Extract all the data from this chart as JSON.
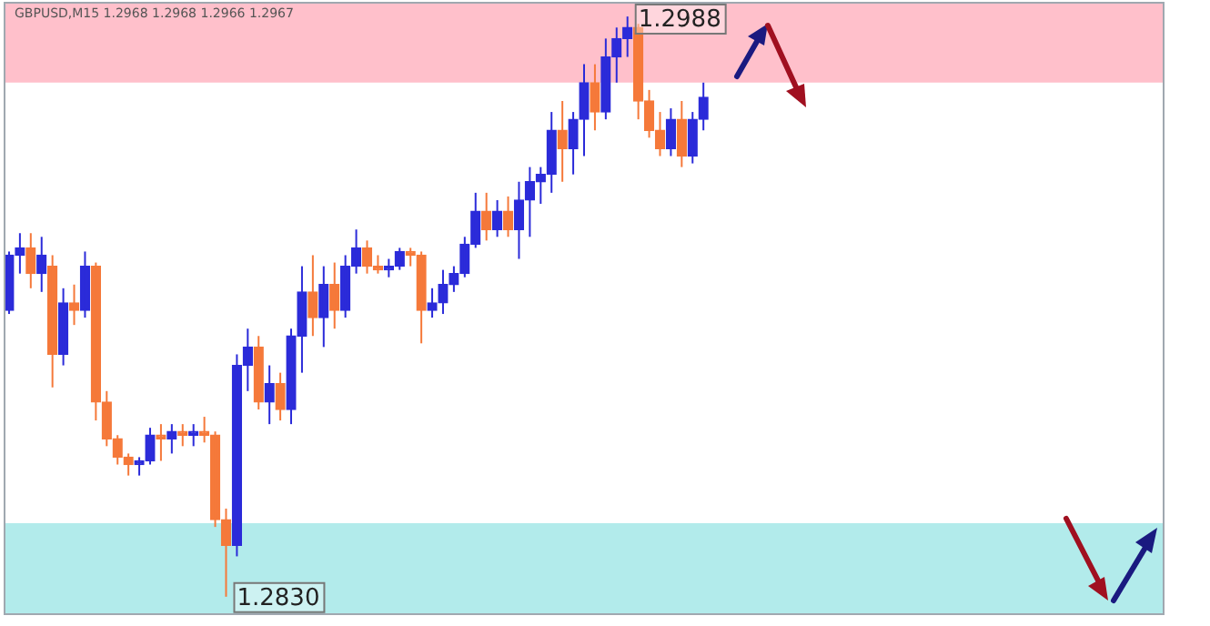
{
  "chart_data": {
    "type": "candlestick",
    "title": "GBPUSD,M15 1.2968 1.2968 1.2966 1.2967",
    "categories": [
      null,
      null,
      null,
      null,
      null,
      null,
      null,
      null,
      null,
      null,
      null,
      null,
      null,
      null,
      null,
      null,
      null,
      null,
      null,
      null,
      null,
      null,
      null,
      null,
      null,
      null,
      null,
      null,
      null,
      null,
      null,
      null,
      null,
      null,
      null,
      null,
      null,
      null,
      null,
      null,
      null,
      null,
      null,
      null,
      null,
      null,
      null,
      null,
      null,
      null,
      null,
      null,
      null,
      null,
      null,
      null,
      null,
      null,
      null,
      null,
      null,
      null,
      null,
      null,
      null,
      null,
      null,
      null,
      null,
      null,
      null,
      null,
      null,
      null,
      null,
      null,
      null,
      null,
      null,
      null,
      null,
      null,
      null,
      null,
      null,
      null,
      null,
      null,
      null,
      null,
      null,
      null,
      null,
      null,
      null,
      null,
      null,
      null,
      null,
      null,
      null,
      null,
      null,
      null,
      null,
      null,
      null
    ],
    "ohlc": [
      [
        1.2908,
        1.2924,
        1.2907,
        1.2923
      ],
      [
        1.2923,
        1.2929,
        1.2918,
        1.2925
      ],
      [
        1.2925,
        1.2929,
        1.2914,
        1.2918
      ],
      [
        1.2918,
        1.2928,
        1.2913,
        1.2923
      ],
      [
        1.292,
        1.2923,
        1.2887,
        1.2896
      ],
      [
        1.2896,
        1.2914,
        1.2893,
        1.291
      ],
      [
        1.291,
        1.2915,
        1.2904,
        1.2908
      ],
      [
        1.2908,
        1.2924,
        1.2906,
        1.292
      ],
      [
        1.292,
        1.2921,
        1.2878,
        1.2883
      ],
      [
        1.2883,
        1.2886,
        1.2871,
        1.2873
      ],
      [
        1.2873,
        1.2874,
        1.2866,
        1.2868
      ],
      [
        1.2868,
        1.2869,
        1.2863,
        1.2866
      ],
      [
        1.2866,
        1.2868,
        1.2863,
        1.2867
      ],
      [
        1.2867,
        1.2876,
        1.2866,
        1.2874
      ],
      [
        1.2874,
        1.2877,
        1.2867,
        1.2873
      ],
      [
        1.2873,
        1.2877,
        1.2869,
        1.2875
      ],
      [
        1.2875,
        1.2877,
        1.2871,
        1.2874
      ],
      [
        1.2874,
        1.2877,
        1.2871,
        1.2875
      ],
      [
        1.2875,
        1.2879,
        1.2872,
        1.2874
      ],
      [
        1.2874,
        1.2875,
        1.2849,
        1.2851
      ],
      [
        1.2851,
        1.2854,
        1.283,
        1.2844
      ],
      [
        1.2844,
        1.2896,
        1.2841,
        1.2893
      ],
      [
        1.2893,
        1.2903,
        1.2886,
        1.2898
      ],
      [
        1.2898,
        1.2901,
        1.2881,
        1.2883
      ],
      [
        1.2883,
        1.2893,
        1.2877,
        1.2888
      ],
      [
        1.2888,
        1.2891,
        1.2878,
        1.2881
      ],
      [
        1.2881,
        1.2903,
        1.2877,
        1.2901
      ],
      [
        1.2901,
        1.292,
        1.2891,
        1.2913
      ],
      [
        1.2913,
        1.2923,
        1.2901,
        1.2906
      ],
      [
        1.2906,
        1.292,
        1.2898,
        1.2915
      ],
      [
        1.2915,
        1.2921,
        1.2903,
        1.2908
      ],
      [
        1.2908,
        1.2923,
        1.2906,
        1.292
      ],
      [
        1.292,
        1.293,
        1.2918,
        1.2925
      ],
      [
        1.2925,
        1.2927,
        1.2918,
        1.292
      ],
      [
        1.292,
        1.2923,
        1.2918,
        1.2919
      ],
      [
        1.2919,
        1.2922,
        1.2917,
        1.292
      ],
      [
        1.292,
        1.2925,
        1.2919,
        1.2924
      ],
      [
        1.2924,
        1.2925,
        1.292,
        1.2923
      ],
      [
        1.2923,
        1.2924,
        1.2899,
        1.2908
      ],
      [
        1.2908,
        1.2914,
        1.2906,
        1.291
      ],
      [
        1.291,
        1.2919,
        1.2907,
        1.2915
      ],
      [
        1.2915,
        1.292,
        1.2913,
        1.2918
      ],
      [
        1.2918,
        1.2928,
        1.2917,
        1.2926
      ],
      [
        1.2926,
        1.294,
        1.2925,
        1.2935
      ],
      [
        1.2935,
        1.294,
        1.2927,
        1.293
      ],
      [
        1.293,
        1.2938,
        1.2928,
        1.2935
      ],
      [
        1.2935,
        1.2939,
        1.2928,
        1.293
      ],
      [
        1.293,
        1.2943,
        1.2922,
        1.2938
      ],
      [
        1.2938,
        1.2947,
        1.2928,
        1.2943
      ],
      [
        1.2943,
        1.2947,
        1.2937,
        1.2945
      ],
      [
        1.2945,
        1.2962,
        1.294,
        1.2957
      ],
      [
        1.2957,
        1.2965,
        1.2943,
        1.2952
      ],
      [
        1.2952,
        1.2962,
        1.2945,
        1.296
      ],
      [
        1.296,
        1.2975,
        1.295,
        1.297
      ],
      [
        1.297,
        1.2975,
        1.2957,
        1.2962
      ],
      [
        1.2962,
        1.2982,
        1.296,
        1.2977
      ],
      [
        1.2977,
        1.2985,
        1.297,
        1.2982
      ],
      [
        1.2982,
        1.2988,
        1.2977,
        1.2985
      ],
      [
        1.2985,
        1.2986,
        1.296,
        1.2965
      ],
      [
        1.2965,
        1.2968,
        1.2955,
        1.2957
      ],
      [
        1.2957,
        1.2962,
        1.295,
        1.2952
      ],
      [
        1.2952,
        1.2963,
        1.295,
        1.296
      ],
      [
        1.296,
        1.2965,
        1.2947,
        1.295
      ],
      [
        1.295,
        1.2962,
        1.2948,
        1.296
      ],
      [
        1.296,
        1.297,
        1.2957,
        1.2966
      ],
      null,
      null,
      null,
      null,
      null,
      null,
      null,
      null,
      null,
      null,
      null,
      null,
      null,
      null,
      null,
      null,
      null,
      null,
      null,
      null,
      null,
      null,
      null,
      null,
      null,
      null,
      null,
      null,
      null,
      null,
      null,
      null,
      null,
      null,
      null,
      null,
      null,
      null,
      null,
      null,
      null,
      null
    ],
    "colors": [
      "#2b2bd9",
      "#2b2bd9",
      "#f5793a",
      "#2b2bd9",
      "#f5793a",
      "#2b2bd9",
      "#f5793a",
      "#2b2bd9",
      "#f5793a",
      "#f5793a",
      "#f5793a",
      "#f5793a",
      "#2b2bd9",
      "#2b2bd9",
      "#f5793a",
      "#2b2bd9",
      "#f5793a",
      "#2b2bd9",
      "#f5793a",
      "#f5793a",
      "#f5793a",
      "#2b2bd9",
      "#2b2bd9",
      "#f5793a",
      "#2b2bd9",
      "#f5793a",
      "#2b2bd9",
      "#2b2bd9",
      "#f5793a",
      "#2b2bd9",
      "#f5793a",
      "#2b2bd9",
      "#2b2bd9",
      "#f5793a",
      "#f5793a",
      "#2b2bd9",
      "#2b2bd9",
      "#f5793a",
      "#f5793a",
      "#2b2bd9",
      "#2b2bd9",
      "#2b2bd9",
      "#2b2bd9",
      "#2b2bd9",
      "#f5793a",
      "#2b2bd9",
      "#f5793a",
      "#2b2bd9",
      "#2b2bd9",
      "#2b2bd9",
      "#2b2bd9",
      "#f5793a",
      "#2b2bd9",
      "#2b2bd9",
      "#f5793a",
      "#2b2bd9",
      "#2b2bd9",
      "#2b2bd9",
      "#f5793a",
      "#f5793a",
      "#f5793a",
      "#2b2bd9",
      "#f5793a",
      "#2b2bd9",
      "#2b2bd9",
      null,
      null,
      null,
      null,
      null,
      null,
      null,
      null,
      null,
      null,
      null,
      null,
      null,
      null,
      null,
      null,
      null,
      null,
      null,
      null,
      null,
      null,
      null,
      null,
      null,
      null,
      null,
      null,
      null,
      null,
      null,
      null,
      null,
      null,
      null,
      null,
      null,
      null,
      null,
      null,
      null,
      null
    ],
    "ylim": [
      1.2825,
      1.2992
    ],
    "tick_labels": false,
    "grid": false,
    "legend": false,
    "bands": [
      {
        "axis": "y",
        "from": 1.297,
        "to": 1.2992,
        "color": "#ffc0cb"
      },
      {
        "axis": "y",
        "from": 1.2825,
        "to": 1.285,
        "color": "#b2ebeb"
      }
    ],
    "annotations": [
      "1.2988",
      "1.2830"
    ]
  }
}
